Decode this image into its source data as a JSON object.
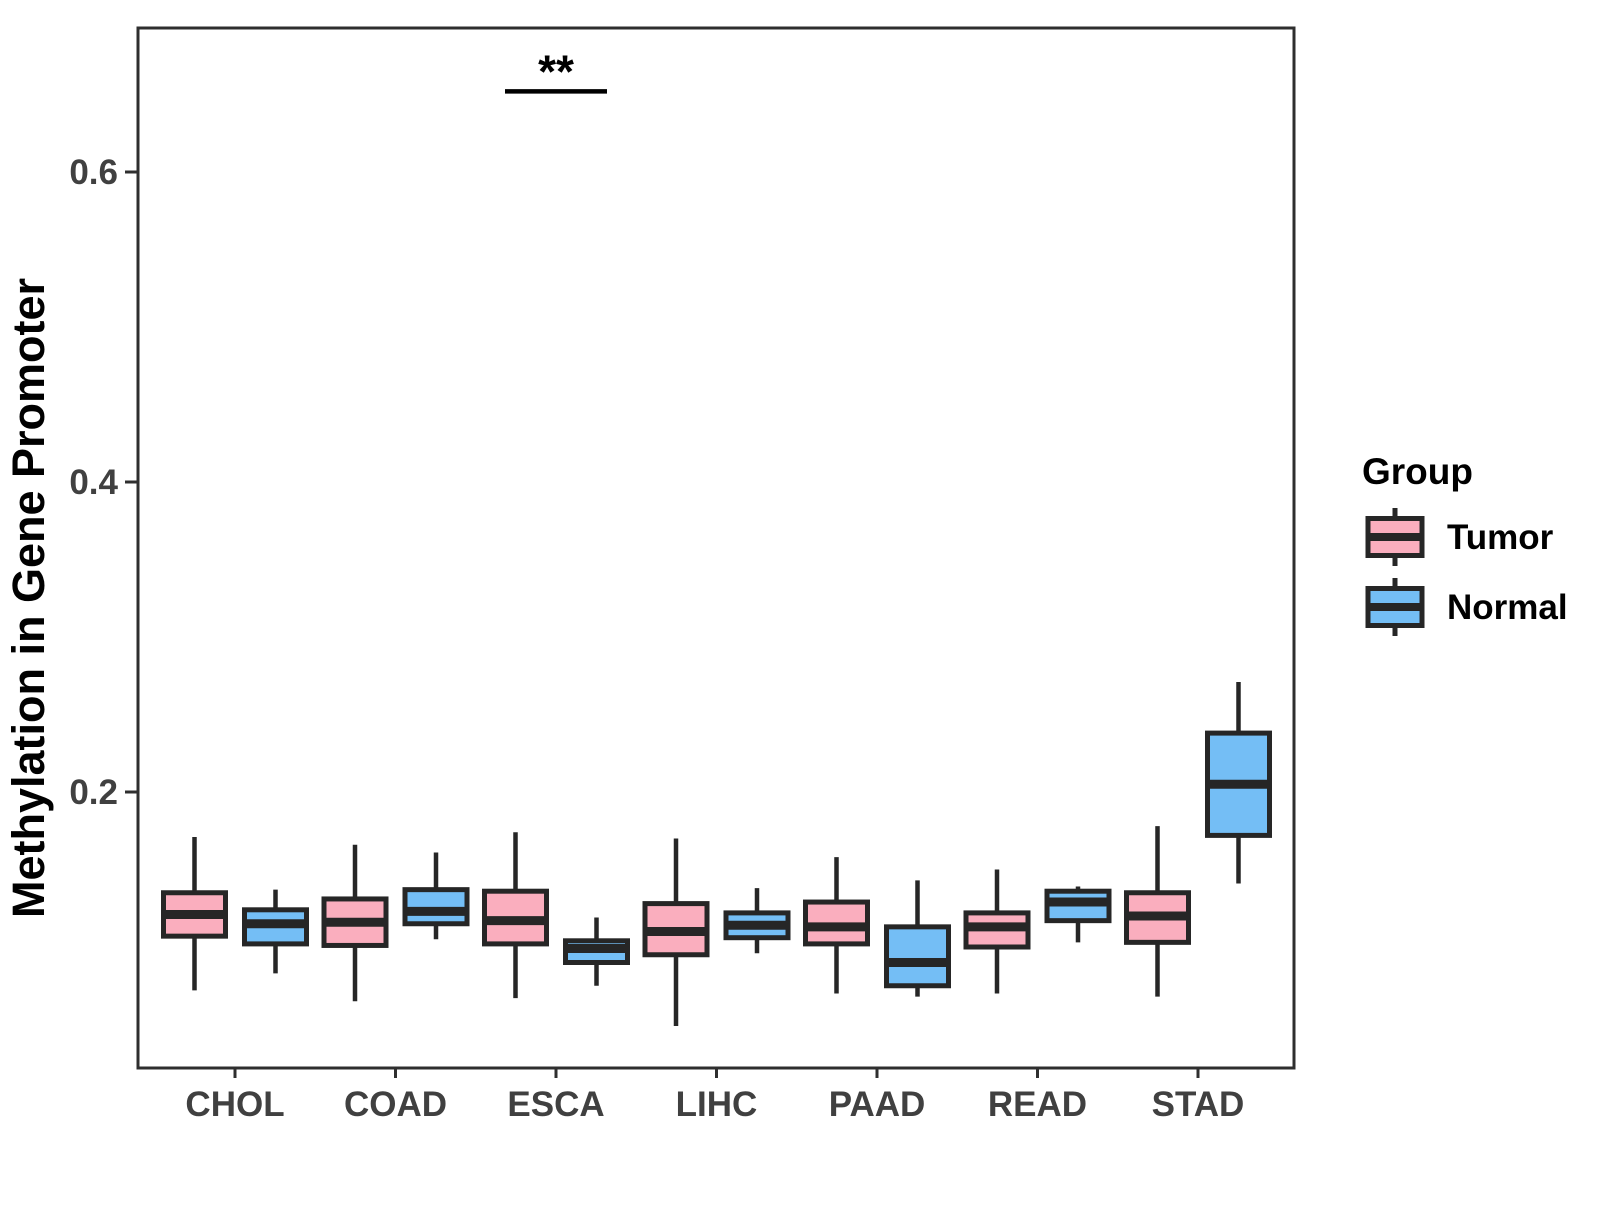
{
  "chart_data": {
    "type": "boxplot",
    "title": "",
    "xlabel": "",
    "ylabel": "Methylation in Gene Promoter",
    "ylim": [
      0.022,
      0.693
    ],
    "grid": false,
    "legend_position": "right",
    "yticks": [
      {
        "value": 0.2,
        "label": "0.2"
      },
      {
        "value": 0.4,
        "label": "0.4"
      },
      {
        "value": 0.6,
        "label": "0.6"
      }
    ],
    "categories": [
      "CHOL",
      "COAD",
      "ESCA",
      "LIHC",
      "PAAD",
      "READ",
      "STAD"
    ],
    "box_outline_color": "#262626",
    "series": [
      {
        "name": "Tumor",
        "color": "#FAAEBE",
        "boxes": [
          {
            "category": "CHOL",
            "low": 0.072,
            "q1": 0.107,
            "median": 0.121,
            "q3": 0.135,
            "high": 0.171
          },
          {
            "category": "COAD",
            "low": 0.065,
            "q1": 0.101,
            "median": 0.116,
            "q3": 0.131,
            "high": 0.166
          },
          {
            "category": "ESCA",
            "low": 0.067,
            "q1": 0.102,
            "median": 0.117,
            "q3": 0.136,
            "high": 0.174
          },
          {
            "category": "LIHC",
            "low": 0.049,
            "q1": 0.095,
            "median": 0.11,
            "q3": 0.128,
            "high": 0.17
          },
          {
            "category": "PAAD",
            "low": 0.07,
            "q1": 0.102,
            "median": 0.113,
            "q3": 0.129,
            "high": 0.158
          },
          {
            "category": "READ",
            "low": 0.07,
            "q1": 0.1,
            "median": 0.113,
            "q3": 0.122,
            "high": 0.15
          },
          {
            "category": "STAD",
            "low": 0.068,
            "q1": 0.103,
            "median": 0.12,
            "q3": 0.135,
            "high": 0.178
          }
        ]
      },
      {
        "name": "Normal",
        "color": "#74BEF5",
        "boxes": [
          {
            "category": "CHOL",
            "low": 0.083,
            "q1": 0.102,
            "median": 0.115,
            "q3": 0.124,
            "high": 0.137
          },
          {
            "category": "COAD",
            "low": 0.105,
            "q1": 0.115,
            "median": 0.123,
            "q3": 0.137,
            "high": 0.161
          },
          {
            "category": "ESCA",
            "low": 0.075,
            "q1": 0.09,
            "median": 0.099,
            "q3": 0.104,
            "high": 0.119
          },
          {
            "category": "LIHC",
            "low": 0.096,
            "q1": 0.106,
            "median": 0.114,
            "q3": 0.122,
            "high": 0.138
          },
          {
            "category": "PAAD",
            "low": 0.068,
            "q1": 0.075,
            "median": 0.09,
            "q3": 0.113,
            "high": 0.143
          },
          {
            "category": "READ",
            "low": 0.103,
            "q1": 0.117,
            "median": 0.129,
            "q3": 0.136,
            "high": 0.139
          },
          {
            "category": "STAD",
            "low": 0.141,
            "q1": 0.172,
            "median": 0.205,
            "q3": 0.238,
            "high": 0.271
          }
        ]
      }
    ],
    "significance": [
      {
        "label": "**",
        "category": "ESCA",
        "category_index": 2,
        "y": 0.652
      }
    ],
    "legend": {
      "title": "Group",
      "entries": [
        {
          "label": "Tumor",
          "color": "#FAAEBE"
        },
        {
          "label": "Normal",
          "color": "#74BEF5"
        }
      ]
    }
  }
}
